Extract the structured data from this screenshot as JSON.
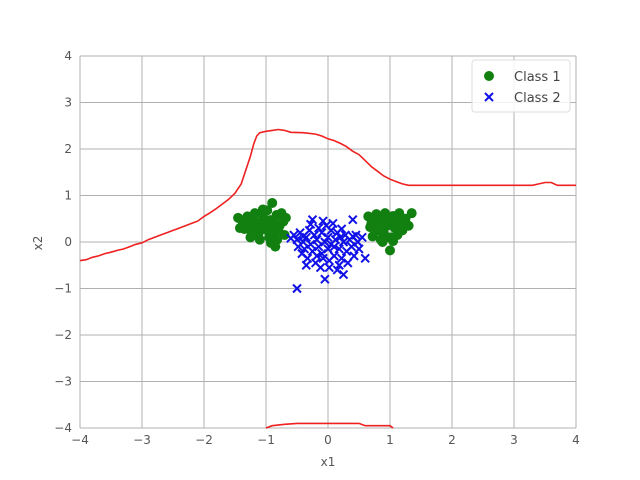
{
  "chart_data": {
    "type": "scatter",
    "xlabel": "x1",
    "ylabel": "x2",
    "xlim": [
      -4,
      4
    ],
    "ylim": [
      -4,
      4
    ],
    "xticks": [
      "−4",
      "−3",
      "−2",
      "−1",
      "0",
      "1",
      "2",
      "3",
      "4"
    ],
    "yticks": [
      "4",
      "3",
      "2",
      "1",
      "0",
      "−1",
      "−2",
      "−3",
      "−4"
    ],
    "grid": true,
    "legend_position": "top-right",
    "colors": {
      "class1": "#118011",
      "class2": "#1010e8",
      "boundary": "#ee2020",
      "grid": "#b0b0b0"
    },
    "series": [
      {
        "name": "Class 1",
        "marker": "circle",
        "points": [
          [
            -1.45,
            0.52
          ],
          [
            -1.38,
            0.45
          ],
          [
            -1.42,
            0.3
          ],
          [
            -1.3,
            0.55
          ],
          [
            -1.28,
            0.4
          ],
          [
            -1.25,
            0.25
          ],
          [
            -1.2,
            0.48
          ],
          [
            -1.18,
            0.62
          ],
          [
            -1.15,
            0.33
          ],
          [
            -1.12,
            0.18
          ],
          [
            -1.08,
            0.42
          ],
          [
            -1.05,
            0.55
          ],
          [
            -1.02,
            0.28
          ],
          [
            -1.0,
            0.38
          ],
          [
            -0.98,
            0.68
          ],
          [
            -0.95,
            0.2
          ],
          [
            -0.93,
            0.47
          ],
          [
            -0.9,
            0.84
          ],
          [
            -0.9,
            0.3
          ],
          [
            -0.88,
            0.12
          ],
          [
            -0.85,
            0.4
          ],
          [
            -0.83,
            0.58
          ],
          [
            -0.8,
            0.25
          ],
          [
            -0.78,
            0.35
          ],
          [
            -0.75,
            0.62
          ],
          [
            -0.72,
            0.44
          ],
          [
            -0.7,
            0.15
          ],
          [
            -0.68,
            0.52
          ],
          [
            -0.92,
            -0.02
          ],
          [
            -0.85,
            -0.1
          ],
          [
            -1.1,
            0.05
          ],
          [
            -1.25,
            0.1
          ],
          [
            -1.35,
            0.28
          ],
          [
            -1.05,
            0.7
          ],
          [
            -0.95,
            0.1
          ],
          [
            -0.82,
            0.05
          ],
          [
            0.65,
            0.55
          ],
          [
            0.68,
            0.32
          ],
          [
            0.72,
            0.12
          ],
          [
            0.75,
            0.44
          ],
          [
            0.78,
            0.6
          ],
          [
            0.8,
            0.25
          ],
          [
            0.82,
            0.38
          ],
          [
            0.85,
            0.05
          ],
          [
            0.88,
            0.52
          ],
          [
            0.9,
            0.2
          ],
          [
            0.92,
            0.62
          ],
          [
            0.95,
            0.35
          ],
          [
            0.98,
            0.45
          ],
          [
            1.0,
            -0.18
          ],
          [
            1.02,
            0.1
          ],
          [
            1.05,
            0.56
          ],
          [
            1.08,
            0.3
          ],
          [
            1.1,
            0.42
          ],
          [
            1.12,
            0.15
          ],
          [
            1.15,
            0.62
          ],
          [
            1.18,
            0.38
          ],
          [
            1.2,
            0.25
          ],
          [
            1.25,
            0.5
          ],
          [
            1.3,
            0.35
          ],
          [
            1.35,
            0.62
          ],
          [
            0.88,
            0.0
          ],
          [
            0.95,
            0.1
          ],
          [
            1.05,
            0.02
          ],
          [
            1.15,
            0.48
          ],
          [
            0.7,
            0.4
          ]
        ]
      },
      {
        "name": "Class 2",
        "marker": "x",
        "points": [
          [
            -0.55,
            0.15
          ],
          [
            -0.5,
            0.05
          ],
          [
            -0.48,
            -0.1
          ],
          [
            -0.45,
            0.2
          ],
          [
            -0.42,
            -0.25
          ],
          [
            -0.4,
            0.0
          ],
          [
            -0.38,
            -0.15
          ],
          [
            -0.35,
            0.1
          ],
          [
            -0.33,
            -0.35
          ],
          [
            -0.3,
            0.25
          ],
          [
            -0.28,
            -0.05
          ],
          [
            -0.25,
            0.48
          ],
          [
            -0.25,
            -0.2
          ],
          [
            -0.22,
            0.15
          ],
          [
            -0.2,
            -0.45
          ],
          [
            -0.18,
            0.05
          ],
          [
            -0.15,
            -0.1
          ],
          [
            -0.15,
            0.3
          ],
          [
            -0.12,
            -0.55
          ],
          [
            -0.1,
            0.2
          ],
          [
            -0.1,
            -0.25
          ],
          [
            -0.08,
            0.45
          ],
          [
            -0.05,
            -0.8
          ],
          [
            -0.05,
            0.0
          ],
          [
            -0.03,
            0.35
          ],
          [
            0.0,
            -0.15
          ],
          [
            0.0,
            0.1
          ],
          [
            0.02,
            -0.4
          ],
          [
            0.05,
            0.25
          ],
          [
            0.05,
            -0.05
          ],
          [
            0.08,
            0.4
          ],
          [
            0.1,
            -0.3
          ],
          [
            0.12,
            0.05
          ],
          [
            0.15,
            -0.6
          ],
          [
            0.15,
            0.2
          ],
          [
            0.18,
            -0.15
          ],
          [
            0.2,
            0.1
          ],
          [
            0.22,
            -0.35
          ],
          [
            0.25,
            0.0
          ],
          [
            0.25,
            -0.7
          ],
          [
            0.28,
            0.15
          ],
          [
            0.3,
            -0.2
          ],
          [
            0.32,
            -0.45
          ],
          [
            0.35,
            0.05
          ],
          [
            0.38,
            -0.1
          ],
          [
            0.4,
            0.12
          ],
          [
            0.42,
            -0.3
          ],
          [
            0.45,
            0.15
          ],
          [
            0.48,
            0.0
          ],
          [
            0.5,
            -0.15
          ],
          [
            0.55,
            0.1
          ],
          [
            0.6,
            -0.35
          ],
          [
            0.4,
            0.48
          ],
          [
            -0.5,
            -1.0
          ],
          [
            -0.35,
            -0.5
          ],
          [
            -0.18,
            -0.3
          ],
          [
            0.02,
            -0.55
          ],
          [
            0.1,
            -0.1
          ],
          [
            -0.4,
            0.12
          ],
          [
            -0.08,
            -0.35
          ],
          [
            0.22,
            0.28
          ],
          [
            -0.28,
            0.38
          ],
          [
            0.18,
            -0.5
          ],
          [
            -0.6,
            0.08
          ]
        ]
      }
    ],
    "boundary_upper": [
      [
        -4.0,
        -0.4
      ],
      [
        -3.9,
        -0.38
      ],
      [
        -3.8,
        -0.33
      ],
      [
        -3.7,
        -0.3
      ],
      [
        -3.6,
        -0.25
      ],
      [
        -3.5,
        -0.22
      ],
      [
        -3.4,
        -0.18
      ],
      [
        -3.3,
        -0.15
      ],
      [
        -3.2,
        -0.1
      ],
      [
        -3.1,
        -0.05
      ],
      [
        -3.0,
        -0.02
      ],
      [
        -2.9,
        0.05
      ],
      [
        -2.8,
        0.1
      ],
      [
        -2.7,
        0.15
      ],
      [
        -2.6,
        0.2
      ],
      [
        -2.5,
        0.25
      ],
      [
        -2.4,
        0.3
      ],
      [
        -2.3,
        0.35
      ],
      [
        -2.2,
        0.4
      ],
      [
        -2.1,
        0.45
      ],
      [
        -2.0,
        0.55
      ],
      [
        -1.9,
        0.63
      ],
      [
        -1.8,
        0.72
      ],
      [
        -1.7,
        0.82
      ],
      [
        -1.6,
        0.92
      ],
      [
        -1.5,
        1.05
      ],
      [
        -1.4,
        1.25
      ],
      [
        -1.35,
        1.45
      ],
      [
        -1.3,
        1.65
      ],
      [
        -1.25,
        1.85
      ],
      [
        -1.2,
        2.1
      ],
      [
        -1.15,
        2.28
      ],
      [
        -1.1,
        2.35
      ],
      [
        -1.0,
        2.38
      ],
      [
        -0.9,
        2.4
      ],
      [
        -0.8,
        2.42
      ],
      [
        -0.7,
        2.4
      ],
      [
        -0.6,
        2.36
      ],
      [
        -0.4,
        2.35
      ],
      [
        -0.2,
        2.32
      ],
      [
        -0.1,
        2.28
      ],
      [
        0.0,
        2.22
      ],
      [
        0.1,
        2.18
      ],
      [
        0.2,
        2.12
      ],
      [
        0.3,
        2.05
      ],
      [
        0.4,
        1.95
      ],
      [
        0.5,
        1.88
      ],
      [
        0.6,
        1.75
      ],
      [
        0.7,
        1.62
      ],
      [
        0.8,
        1.52
      ],
      [
        0.9,
        1.42
      ],
      [
        1.0,
        1.35
      ],
      [
        1.1,
        1.3
      ],
      [
        1.2,
        1.25
      ],
      [
        1.3,
        1.22
      ],
      [
        1.5,
        1.22
      ],
      [
        2.0,
        1.22
      ],
      [
        2.5,
        1.22
      ],
      [
        3.0,
        1.22
      ],
      [
        3.3,
        1.22
      ],
      [
        3.4,
        1.25
      ],
      [
        3.5,
        1.28
      ],
      [
        3.6,
        1.28
      ],
      [
        3.7,
        1.22
      ],
      [
        4.0,
        1.22
      ]
    ],
    "boundary_lower": [
      [
        -1.0,
        -4.0
      ],
      [
        -0.9,
        -3.95
      ],
      [
        -0.7,
        -3.92
      ],
      [
        -0.5,
        -3.9
      ],
      [
        -0.2,
        -3.9
      ],
      [
        0.2,
        -3.9
      ],
      [
        0.5,
        -3.9
      ],
      [
        0.6,
        -3.95
      ],
      [
        1.0,
        -3.95
      ],
      [
        1.05,
        -4.0
      ]
    ]
  }
}
